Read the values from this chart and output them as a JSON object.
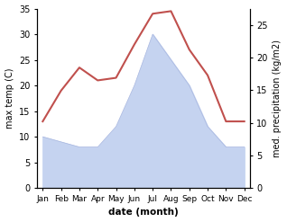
{
  "months": [
    "Jan",
    "Feb",
    "Mar",
    "Apr",
    "May",
    "Jun",
    "Jul",
    "Aug",
    "Sep",
    "Oct",
    "Nov",
    "Dec"
  ],
  "month_positions": [
    0,
    1,
    2,
    3,
    4,
    5,
    6,
    7,
    8,
    9,
    10,
    11
  ],
  "temperature": [
    13,
    19,
    23.5,
    21,
    21.5,
    28,
    34,
    34.5,
    27,
    22,
    13,
    13
  ],
  "precipitation_left": [
    10,
    9,
    8,
    8,
    12,
    20,
    30,
    25,
    20,
    12,
    8,
    8
  ],
  "temp_ylim": [
    0,
    35
  ],
  "precip_ylim": [
    0,
    35
  ],
  "temp_yticks": [
    0,
    5,
    10,
    15,
    20,
    25,
    30,
    35
  ],
  "right_yticks": [
    0,
    5,
    10,
    15,
    20,
    25
  ],
  "right_ylim": [
    0,
    27.5
  ],
  "xlabel": "date (month)",
  "ylabel_left": "max temp (C)",
  "ylabel_right": "med. precipitation (kg/m2)",
  "line_color": "#c0504d",
  "fill_color": "#c5d3f0",
  "fill_edge_color": "#aab8e0",
  "bg_color": "#ffffff",
  "line_width": 1.5
}
